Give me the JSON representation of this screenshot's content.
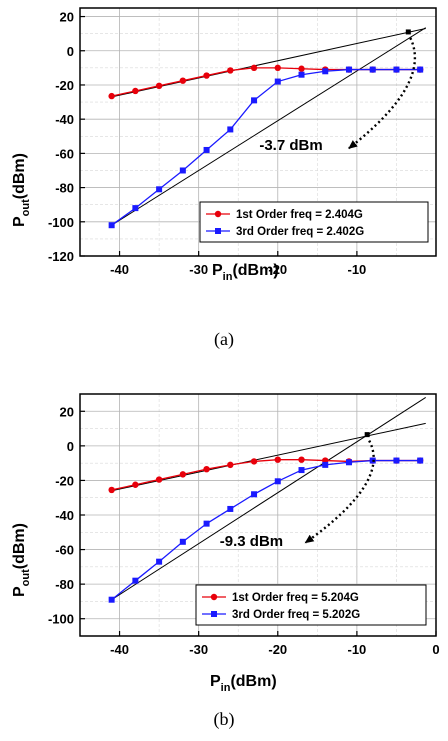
{
  "chart_data": [
    {
      "type": "line",
      "caption": "(a)",
      "xlabel_main": "P",
      "xlabel_sub": "in",
      "xlabel_unit": "(dBm)",
      "ylabel_main": "P",
      "ylabel_sub": "out",
      "ylabel_unit": "(dBm)",
      "xlim": [
        -45,
        0
      ],
      "ylim": [
        -120,
        25
      ],
      "xticks": [
        -40,
        -30,
        -20,
        -10
      ],
      "xtick_labels": [
        "-40",
        "-30",
        "-20",
        "-10"
      ],
      "yticks": [
        20,
        0,
        -20,
        -40,
        -60,
        -80,
        -100,
        -120
      ],
      "ytick_labels": [
        "20",
        "0",
        "-20",
        "-40",
        "-60",
        "-80",
        "-100",
        "-120"
      ],
      "grid": true,
      "legend_position": "bottom-right",
      "series": [
        {
          "name": "1st Order freq = 2.404G",
          "color": "#e8000b",
          "marker": "circle",
          "x": [
            -41,
            -38,
            -35,
            -32,
            -29,
            -26,
            -23,
            -20,
            -17,
            -14,
            -11,
            -8,
            -5,
            -2
          ],
          "y": [
            -26.5,
            -23.5,
            -20.5,
            -17.5,
            -14.5,
            -11.5,
            -10,
            -10,
            -10.5,
            -11,
            -11,
            -11,
            -11,
            -11
          ]
        },
        {
          "name": "3rd Order freq = 2.402G",
          "color": "#1a1aff",
          "marker": "square",
          "x": [
            -41,
            -38,
            -35,
            -32,
            -29,
            -26,
            -23,
            -20,
            -17,
            -14,
            -11,
            -8,
            -5,
            -2
          ],
          "y": [
            -102,
            -92,
            -81,
            -70,
            -58,
            -46,
            -29,
            -18,
            -14,
            -12,
            -11,
            -11,
            -11,
            -11
          ]
        }
      ],
      "fit_lines": [
        {
          "x": [
            -41,
            -1.3
          ],
          "y": [
            -27,
            13
          ]
        },
        {
          "x": [
            -41,
            -1.3
          ],
          "y": [
            -102,
            13.5
          ]
        }
      ],
      "intercept_point": {
        "x": -3.5,
        "y": 11
      },
      "annotation": "-3.7 dBm",
      "annotation_anchor": {
        "x": -15,
        "y": -55
      },
      "arrow_to": {
        "x": -11,
        "y": -57
      }
    },
    {
      "type": "line",
      "caption": "(b)",
      "xlabel_main": "P",
      "xlabel_sub": "in",
      "xlabel_unit": "(dBm)",
      "ylabel_main": "P",
      "ylabel_sub": "out",
      "ylabel_unit": "(dBm)",
      "xlim": [
        -45,
        0
      ],
      "ylim": [
        -110,
        30
      ],
      "xticks": [
        -40,
        -30,
        -20,
        -10,
        0
      ],
      "xtick_labels": [
        "-40",
        "-30",
        "-20",
        "-10",
        "0"
      ],
      "yticks": [
        20,
        0,
        -20,
        -40,
        -60,
        -80,
        -100
      ],
      "ytick_labels": [
        "20",
        "0",
        "-20",
        "-40",
        "-60",
        "-80",
        "-100"
      ],
      "grid": true,
      "legend_position": "bottom-right",
      "series": [
        {
          "name": "1st Order freq = 5.204G",
          "color": "#e8000b",
          "marker": "circle",
          "x": [
            -41,
            -38,
            -35,
            -32,
            -29,
            -26,
            -23,
            -20,
            -17,
            -14,
            -11,
            -8,
            -5,
            -2
          ],
          "y": [
            -25.5,
            -22.5,
            -19.5,
            -16.5,
            -13.5,
            -11,
            -9,
            -8,
            -8,
            -8.5,
            -9,
            -8.5,
            -8.5,
            -8.5
          ]
        },
        {
          "name": "3rd Order freq = 5.202G",
          "color": "#1a1aff",
          "marker": "square",
          "x": [
            -41,
            -38,
            -35,
            -32,
            -29,
            -26,
            -23,
            -20,
            -17,
            -14,
            -11,
            -8,
            -5,
            -2
          ],
          "y": [
            -89,
            -78,
            -67,
            -55.5,
            -45,
            -36.5,
            -28,
            -20.5,
            -14,
            -11,
            -9.5,
            -8.5,
            -8.5,
            -8.5
          ]
        }
      ],
      "fit_lines": [
        {
          "x": [
            -41,
            -1.3
          ],
          "y": [
            -26,
            13
          ]
        },
        {
          "x": [
            -41,
            -1.3
          ],
          "y": [
            -89,
            28
          ]
        }
      ],
      "intercept_point": {
        "x": -8.7,
        "y": 6.5
      },
      "annotation": "-9.3 dBm",
      "annotation_anchor": {
        "x": -20,
        "y": -55
      },
      "arrow_to": {
        "x": -16.5,
        "y": -56
      }
    }
  ]
}
